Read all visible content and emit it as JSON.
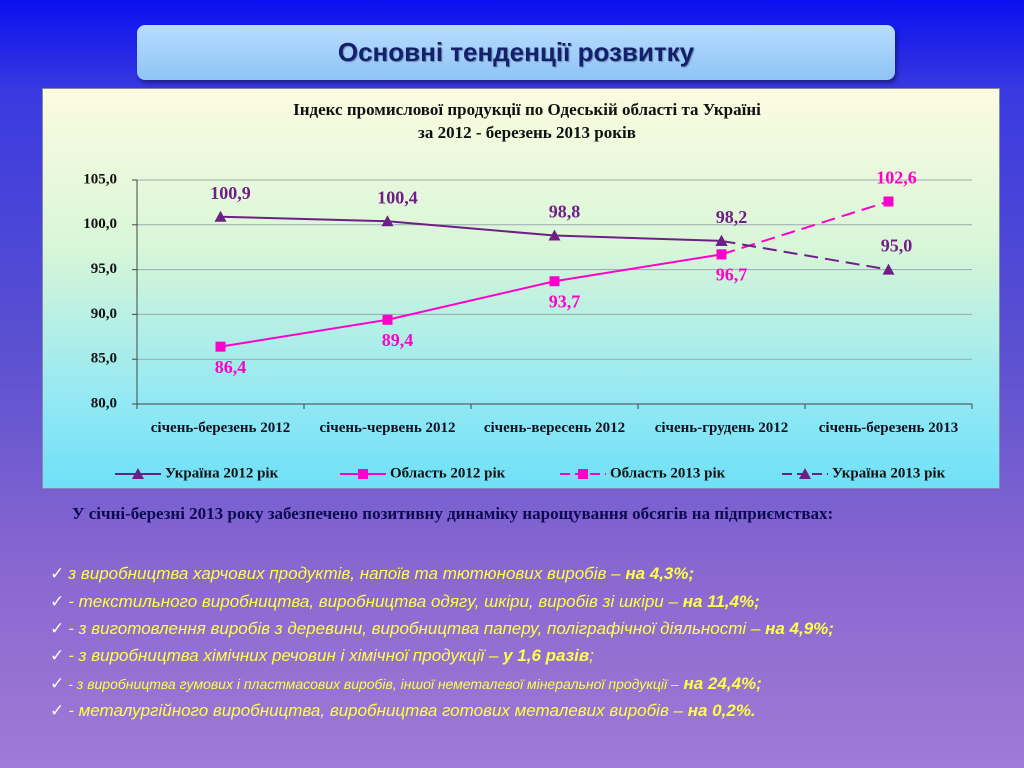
{
  "header": {
    "title": "Основні тенденції розвитку"
  },
  "chart_data": {
    "type": "line",
    "title": "Індекс промислової продукції по Одеській області та Україні",
    "subtitle": "за 2012 - березень 2013 років",
    "categories": [
      "січень-березень 2012",
      "січень-червень 2012",
      "січень-вересень 2012",
      "січень-грудень 2012",
      "січень-березень 2013"
    ],
    "series": [
      {
        "name": "Україна 2012 рік",
        "color": "#6e1f86",
        "marker": "triangle",
        "dashed": false,
        "label_position": "above",
        "values": [
          100.9,
          100.4,
          98.8,
          98.2,
          null
        ],
        "value_labels": [
          "100,9",
          "100,4",
          "98,8",
          "98,2",
          null
        ]
      },
      {
        "name": "Область 2012 рік",
        "color": "#ff00cc",
        "marker": "square",
        "dashed": false,
        "label_position": "below",
        "values": [
          86.4,
          89.4,
          93.7,
          96.7,
          null
        ],
        "value_labels": [
          "86,4",
          "89,4",
          "93,7",
          "96,7",
          null
        ]
      },
      {
        "name": "Область 2013 рік",
        "color": "#ff00cc",
        "marker": "square",
        "dashed": true,
        "label_position": "above",
        "values": [
          null,
          null,
          null,
          96.7,
          102.6
        ],
        "value_labels": [
          null,
          null,
          null,
          null,
          "102,6"
        ]
      },
      {
        "name": "Україна 2013 рік",
        "color": "#6e1f86",
        "marker": "triangle",
        "dashed": true,
        "label_position": "above",
        "values": [
          null,
          null,
          null,
          98.2,
          95.0
        ],
        "value_labels": [
          null,
          null,
          null,
          null,
          "95,0"
        ]
      }
    ],
    "ylim": [
      80,
      105
    ],
    "yticks": [
      {
        "value": 80,
        "label": "80,0"
      },
      {
        "value": 85,
        "label": "85,0"
      },
      {
        "value": 90,
        "label": "90,0"
      },
      {
        "value": 95,
        "label": "95,0"
      },
      {
        "value": 100,
        "label": "100,0"
      },
      {
        "value": 105,
        "label": "105,0"
      }
    ],
    "grid": true,
    "legend": "bottom"
  },
  "text": {
    "intro": "У січні-березні 2013 року забезпечено позитивну динаміку нарощування обсягів на підприємствах:",
    "items": [
      {
        "text": "з виробництва харчових продуктів, напоїв та тютюнових виробів –",
        "highlight": "на 4,3%;"
      },
      {
        "text": "- текстильного виробництва, виробництва одягу, шкіри, виробів зі шкіри –",
        "highlight": "на 11,4%;"
      },
      {
        "text": "- з виготовлення виробів з деревини, виробництва паперу, поліграфічної діяльності –",
        "highlight": "на 4,9%;"
      },
      {
        "text": "- з виробництва хімічних речовин і хімічної продукції –",
        "highlight": "у 1,6 разів",
        "tail": ";"
      },
      {
        "text": "- з виробництва гумових і пластмасових виробів, іншої неметалевої мінеральної продукції –",
        "highlight": "на 24,4%;"
      },
      {
        "text": "- металургійного виробництва, виробництва готових металевих виробів –",
        "highlight": "на 0,2%."
      }
    ]
  }
}
